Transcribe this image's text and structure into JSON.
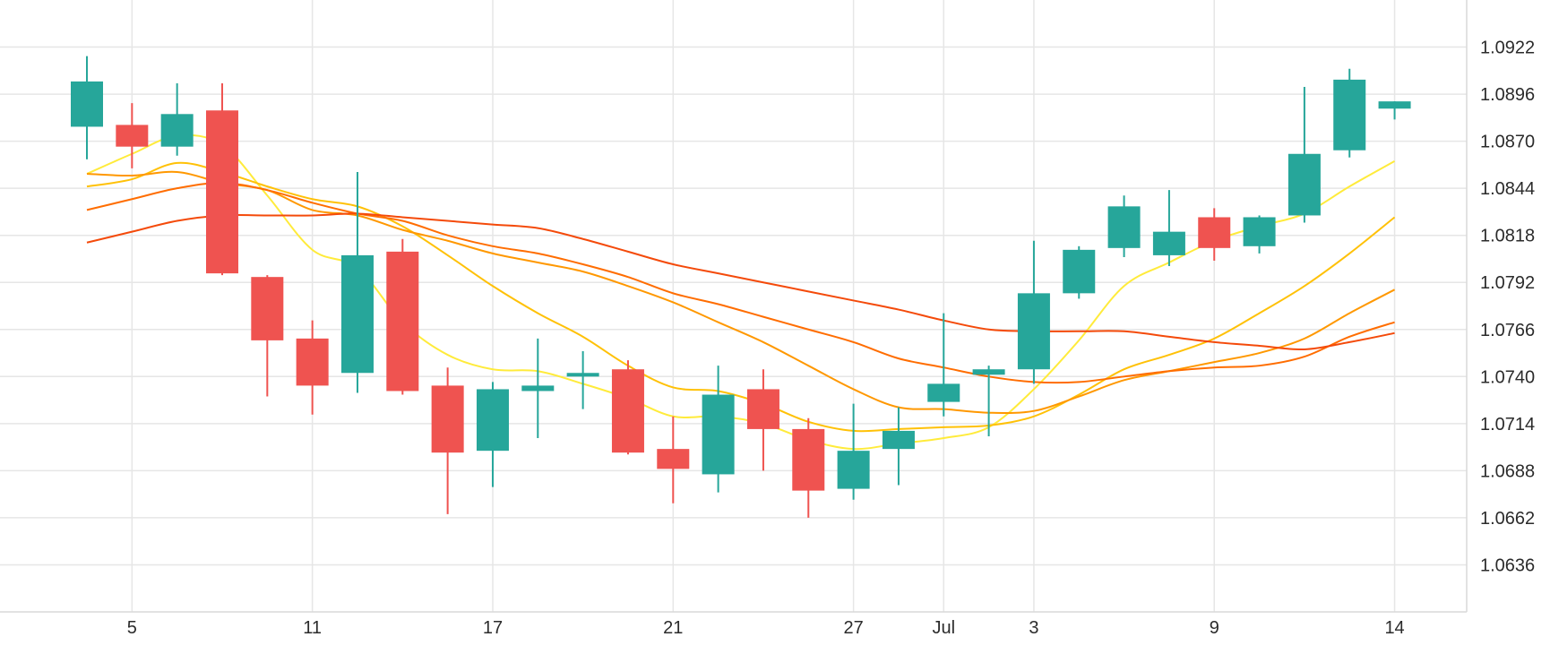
{
  "chart_data": {
    "type": "candlestick",
    "title": "",
    "xlabel": "",
    "ylabel": "",
    "ylim": [
      1.061,
      1.0948
    ],
    "grid": true,
    "y_ticks": [
      "1.0922",
      "1.0896",
      "1.0870",
      "1.0844",
      "1.0818",
      "1.0792",
      "1.0766",
      "1.0740",
      "1.0714",
      "1.0688",
      "1.0662",
      "1.0636"
    ],
    "x_ticks": [
      {
        "label": "5",
        "index": 1
      },
      {
        "label": "11",
        "index": 5
      },
      {
        "label": "17",
        "index": 9
      },
      {
        "label": "21",
        "index": 13
      },
      {
        "label": "27",
        "index": 17
      },
      {
        "label": "Jul",
        "index": 19
      },
      {
        "label": "3",
        "index": 21
      },
      {
        "label": "9",
        "index": 25
      },
      {
        "label": "14",
        "index": 29
      }
    ],
    "candles": [
      {
        "o": 1.0878,
        "h": 1.0917,
        "l": 1.086,
        "c": 1.0903
      },
      {
        "o": 1.0879,
        "h": 1.0891,
        "l": 1.0855,
        "c": 1.0867
      },
      {
        "o": 1.0867,
        "h": 1.0902,
        "l": 1.0862,
        "c": 1.0885
      },
      {
        "o": 1.0887,
        "h": 1.0902,
        "l": 1.0796,
        "c": 1.0797
      },
      {
        "o": 1.0795,
        "h": 1.0796,
        "l": 1.0729,
        "c": 1.076
      },
      {
        "o": 1.0761,
        "h": 1.0771,
        "l": 1.0719,
        "c": 1.0735
      },
      {
        "o": 1.0742,
        "h": 1.0853,
        "l": 1.0731,
        "c": 1.0807
      },
      {
        "o": 1.0809,
        "h": 1.0816,
        "l": 1.073,
        "c": 1.0732
      },
      {
        "o": 1.0735,
        "h": 1.0745,
        "l": 1.0664,
        "c": 1.0698
      },
      {
        "o": 1.0699,
        "h": 1.0737,
        "l": 1.0679,
        "c": 1.0733
      },
      {
        "o": 1.0732,
        "h": 1.0761,
        "l": 1.0706,
        "c": 1.0735
      },
      {
        "o": 1.074,
        "h": 1.0754,
        "l": 1.0722,
        "c": 1.0742
      },
      {
        "o": 1.0744,
        "h": 1.0749,
        "l": 1.0697,
        "c": 1.0698
      },
      {
        "o": 1.07,
        "h": 1.0718,
        "l": 1.067,
        "c": 1.0689
      },
      {
        "o": 1.0686,
        "h": 1.0746,
        "l": 1.0676,
        "c": 1.073
      },
      {
        "o": 1.0733,
        "h": 1.0744,
        "l": 1.0688,
        "c": 1.0711
      },
      {
        "o": 1.0711,
        "h": 1.0717,
        "l": 1.0662,
        "c": 1.0677
      },
      {
        "o": 1.0678,
        "h": 1.0725,
        "l": 1.0672,
        "c": 1.0699
      },
      {
        "o": 1.07,
        "h": 1.0723,
        "l": 1.068,
        "c": 1.071
      },
      {
        "o": 1.0726,
        "h": 1.0775,
        "l": 1.0718,
        "c": 1.0736
      },
      {
        "o": 1.0741,
        "h": 1.0746,
        "l": 1.0707,
        "c": 1.0744
      },
      {
        "o": 1.0744,
        "h": 1.0815,
        "l": 1.0736,
        "c": 1.0786
      },
      {
        "o": 1.0786,
        "h": 1.0812,
        "l": 1.0783,
        "c": 1.081
      },
      {
        "o": 1.0811,
        "h": 1.084,
        "l": 1.0806,
        "c": 1.0834
      },
      {
        "o": 1.0807,
        "h": 1.0843,
        "l": 1.0801,
        "c": 1.082
      },
      {
        "o": 1.0828,
        "h": 1.0833,
        "l": 1.0804,
        "c": 1.0811
      },
      {
        "o": 1.0812,
        "h": 1.0829,
        "l": 1.0808,
        "c": 1.0828
      },
      {
        "o": 1.0829,
        "h": 1.09,
        "l": 1.0825,
        "c": 1.0863
      },
      {
        "o": 1.0865,
        "h": 1.091,
        "l": 1.0861,
        "c": 1.0904
      },
      {
        "o": 1.0888,
        "h": 1.0892,
        "l": 1.0882,
        "c": 1.0892
      }
    ],
    "moving_averages": [
      {
        "color": "#ffeb3b",
        "values": [
          1.0852,
          1.0863,
          1.0873,
          1.0868,
          1.084,
          1.081,
          1.08,
          1.077,
          1.0752,
          1.0744,
          1.0743,
          1.0736,
          1.0728,
          1.0718,
          1.0718,
          1.0714,
          1.0705,
          1.07,
          1.0703,
          1.0706,
          1.0712,
          1.0733,
          1.076,
          1.079,
          1.0803,
          1.0815,
          1.0823,
          1.083,
          1.0845,
          1.0859
        ]
      },
      {
        "color": "#ffc107",
        "values": [
          1.0845,
          1.0849,
          1.0858,
          1.0853,
          1.0845,
          1.0838,
          1.0834,
          1.0823,
          1.0807,
          1.079,
          1.0775,
          1.0762,
          1.0746,
          1.0734,
          1.0732,
          1.0725,
          1.0715,
          1.071,
          1.0711,
          1.0712,
          1.0713,
          1.0718,
          1.073,
          1.0744,
          1.0752,
          1.0761,
          1.0775,
          1.079,
          1.0808,
          1.0828
        ]
      },
      {
        "color": "#ff9800",
        "values": [
          1.0852,
          1.0851,
          1.0853,
          1.0847,
          1.0843,
          1.0832,
          1.0829,
          1.0821,
          1.0815,
          1.0808,
          1.0803,
          1.0798,
          1.079,
          1.0781,
          1.077,
          1.0759,
          1.0746,
          1.0733,
          1.0723,
          1.0722,
          1.072,
          1.0721,
          1.0729,
          1.0738,
          1.0743,
          1.0748,
          1.0753,
          1.0761,
          1.0775,
          1.0788
        ]
      },
      {
        "color": "#ff6d00",
        "values": [
          1.0832,
          1.0838,
          1.0844,
          1.0847,
          1.0843,
          1.0836,
          1.083,
          1.0826,
          1.0818,
          1.0812,
          1.0808,
          1.0802,
          1.0795,
          1.0786,
          1.078,
          1.0773,
          1.0766,
          1.0759,
          1.075,
          1.0745,
          1.074,
          1.0737,
          1.0737,
          1.074,
          1.0743,
          1.0745,
          1.0746,
          1.0751,
          1.0762,
          1.077
        ]
      },
      {
        "color": "#f44a0a",
        "values": [
          1.0814,
          1.082,
          1.0826,
          1.0829,
          1.0829,
          1.0829,
          1.083,
          1.0828,
          1.0826,
          1.0824,
          1.0822,
          1.0816,
          1.0809,
          1.0802,
          1.0797,
          1.0792,
          1.0787,
          1.0782,
          1.0777,
          1.0771,
          1.0766,
          1.0765,
          1.0765,
          1.0765,
          1.0762,
          1.0759,
          1.0757,
          1.0755,
          1.0759,
          1.0764
        ]
      }
    ],
    "colors": {
      "up": "#26a69a",
      "down": "#ef5350",
      "grid": "#e6e6e6",
      "axis": "#d9d9d9",
      "text": "#2b2b2b"
    }
  }
}
